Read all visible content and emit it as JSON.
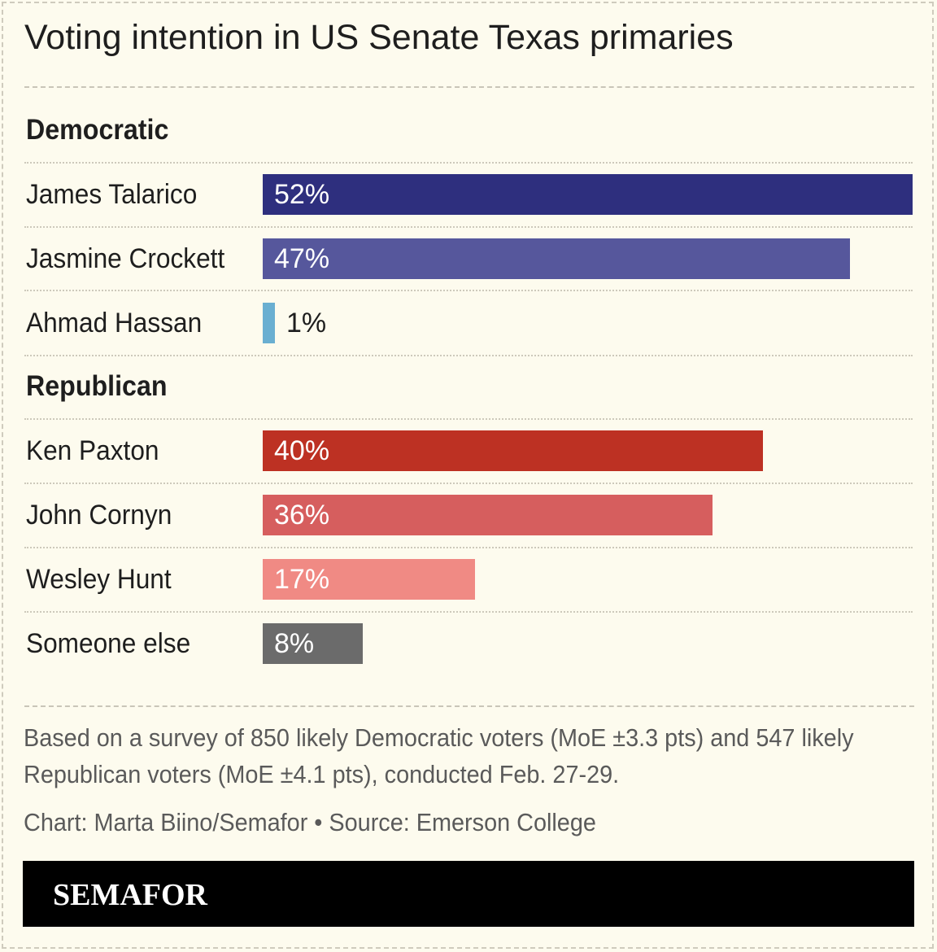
{
  "title": "Voting intention in US Senate Texas primaries",
  "note": "Based on a survey of 850 likely Democratic voters (MoE ±3.3 pts) and 547 likely Republican voters (MoE ±4.1 pts), conducted Feb. 27-29.",
  "credit": "Chart: Marta Biino/Semafor • Source: Emerson College",
  "logo": "SEMAFOR",
  "colors": {
    "background": "#fdfbee",
    "talarico": "#2e2f7e",
    "crockett": "#56579c",
    "hassan": "#6aafd1",
    "paxton": "#bd3123",
    "cornyn": "#d65e5e",
    "hunt": "#f08a84",
    "someone_else": "#6b6b6b",
    "footer": "#000000"
  },
  "chart_data": {
    "type": "bar",
    "orientation": "horizontal",
    "xlim": [
      0,
      52
    ],
    "groups": [
      {
        "name": "Democratic",
        "categories": [
          "James Talarico",
          "Jasmine Crockett",
          "Ahmad Hassan"
        ],
        "values": [
          52,
          47,
          1
        ],
        "labels": [
          "52%",
          "47%",
          "1%"
        ],
        "colors": [
          "#2e2f7e",
          "#56579c",
          "#6aafd1"
        ]
      },
      {
        "name": "Republican",
        "categories": [
          "Ken Paxton",
          "John Cornyn",
          "Wesley Hunt",
          "Someone else"
        ],
        "values": [
          40,
          36,
          17,
          8
        ],
        "labels": [
          "40%",
          "36%",
          "17%",
          "8%"
        ],
        "colors": [
          "#bd3123",
          "#d65e5e",
          "#f08a84",
          "#6b6b6b"
        ]
      }
    ]
  }
}
